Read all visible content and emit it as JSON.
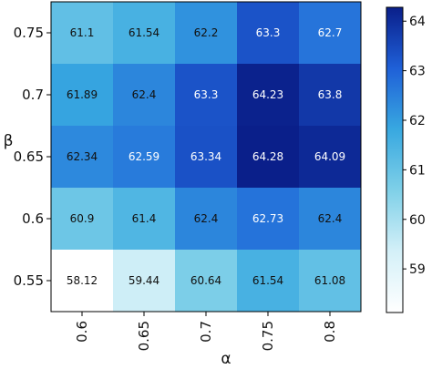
{
  "chart_data": {
    "type": "heatmap",
    "xlabel": "α",
    "ylabel": "β",
    "x_categories": [
      "0.6",
      "0.65",
      "0.7",
      "0.75",
      "0.8"
    ],
    "y_categories": [
      "0.75",
      "0.7",
      "0.65",
      "0.6",
      "0.55"
    ],
    "values": [
      [
        61.1,
        61.54,
        62.2,
        63.3,
        62.7
      ],
      [
        61.89,
        62.4,
        63.3,
        64.23,
        63.8
      ],
      [
        62.34,
        62.59,
        63.34,
        64.28,
        64.09
      ],
      [
        60.9,
        61.4,
        62.4,
        62.73,
        62.4
      ],
      [
        58.12,
        59.44,
        60.64,
        61.54,
        61.08
      ]
    ],
    "value_labels": [
      [
        "61.1",
        "61.54",
        "62.2",
        "63.3",
        "62.7"
      ],
      [
        "61.89",
        "62.4",
        "63.3",
        "64.23",
        "63.8"
      ],
      [
        "62.34",
        "62.59",
        "63.34",
        "64.28",
        "64.09"
      ],
      [
        "60.9",
        "61.4",
        "62.4",
        "62.73",
        "62.4"
      ],
      [
        "58.12",
        "59.44",
        "60.64",
        "61.54",
        "61.08"
      ]
    ],
    "colorbar": {
      "vmin": 58.12,
      "vmax": 64.28,
      "ticks": [
        "59",
        "60",
        "61",
        "62",
        "63",
        "64"
      ],
      "colormap": "Blues"
    },
    "colors": {
      "low": "#f7fbff",
      "mid": "#4aa6dc",
      "high": "#08306b"
    }
  }
}
